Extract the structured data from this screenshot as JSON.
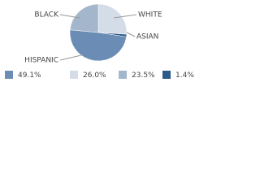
{
  "chart_data": {
    "type": "pie",
    "categories": [
      "HISPANIC",
      "WHITE",
      "BLACK",
      "ASIAN"
    ],
    "values": [
      49.1,
      26.0,
      23.5,
      1.4
    ],
    "value_labels": [
      "49.1%",
      "26.0%",
      "23.5%",
      "1.4%"
    ],
    "colors": [
      "#6b8cb4",
      "#d4dce8",
      "#a4b6cc",
      "#2d5a88"
    ]
  }
}
